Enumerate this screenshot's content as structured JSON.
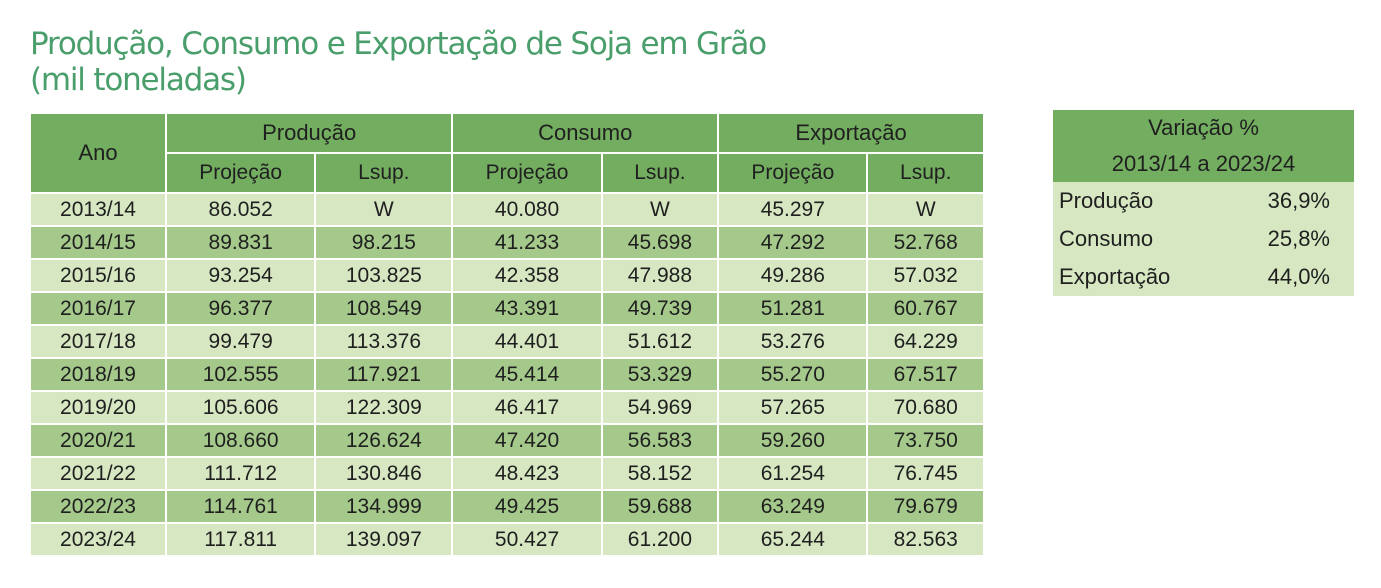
{
  "title": {
    "line1": "Produção, Consumo e Exportação de Soja em Grão",
    "line2": "(mil toneladas)"
  },
  "table": {
    "col_ano": "Ano",
    "groups": [
      "Produção",
      "Consumo",
      "Exportação"
    ],
    "subheaders": [
      "Projeção",
      "Lsup.",
      "Projeção",
      "Lsup.",
      "Projeção",
      "Lsup."
    ],
    "rows": [
      [
        "2013/14",
        "86.052",
        "W",
        "40.080",
        "W",
        "45.297",
        "W"
      ],
      [
        "2014/15",
        "89.831",
        "98.215",
        "41.233",
        "45.698",
        "47.292",
        "52.768"
      ],
      [
        "2015/16",
        "93.254",
        "103.825",
        "42.358",
        "47.988",
        "49.286",
        "57.032"
      ],
      [
        "2016/17",
        "96.377",
        "108.549",
        "43.391",
        "49.739",
        "51.281",
        "60.767"
      ],
      [
        "2017/18",
        "99.479",
        "113.376",
        "44.401",
        "51.612",
        "53.276",
        "64.229"
      ],
      [
        "2018/19",
        "102.555",
        "117.921",
        "45.414",
        "53.329",
        "55.270",
        "67.517"
      ],
      [
        "2019/20",
        "105.606",
        "122.309",
        "46.417",
        "54.969",
        "57.265",
        "70.680"
      ],
      [
        "2020/21",
        "108.660",
        "126.624",
        "47.420",
        "56.583",
        "59.260",
        "73.750"
      ],
      [
        "2021/22",
        "111.712",
        "130.846",
        "48.423",
        "58.152",
        "61.254",
        "76.745"
      ],
      [
        "2022/23",
        "114.761",
        "134.999",
        "49.425",
        "59.688",
        "63.249",
        "79.679"
      ],
      [
        "2023/24",
        "117.811",
        "139.097",
        "50.427",
        "61.200",
        "65.244",
        "82.563"
      ]
    ]
  },
  "variation": {
    "header1": "Variação %",
    "header2": "2013/14 a 2023/24",
    "items": [
      {
        "label": "Produção",
        "value": "36,9%"
      },
      {
        "label": "Consumo",
        "value": "25,8%"
      },
      {
        "label": "Exportação",
        "value": "44,0%"
      }
    ]
  },
  "colors": {
    "title": "#4a9e6b",
    "header_green": "#73ad60",
    "row_light": "#d6e7c2",
    "row_dark": "#a4c98b"
  }
}
